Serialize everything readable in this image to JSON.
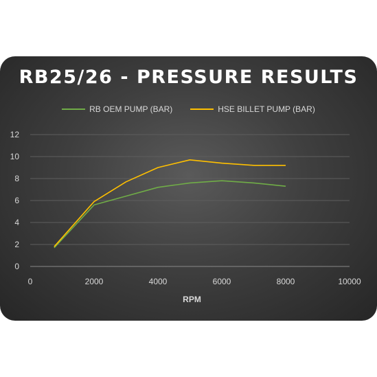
{
  "chart_data": {
    "type": "line",
    "title": "RB25/26 - PRESSURE RESULTS",
    "xlabel": "RPM",
    "ylabel": "",
    "xlim": [
      0,
      10000
    ],
    "ylim": [
      0,
      12
    ],
    "x_ticks": [
      0,
      2000,
      4000,
      6000,
      8000,
      10000
    ],
    "y_ticks": [
      0,
      2,
      4,
      6,
      8,
      10,
      12
    ],
    "grid": "horizontal",
    "legend": "top",
    "series": [
      {
        "name": "RB OEM PUMP (BAR)",
        "color": "#70ad47",
        "x": [
          750,
          2000,
          3000,
          4000,
          5000,
          6000,
          7000,
          8000
        ],
        "y": [
          1.7,
          5.6,
          6.4,
          7.2,
          7.6,
          7.8,
          7.6,
          7.3
        ]
      },
      {
        "name": "HSE BILLET PUMP (BAR)",
        "color": "#ffc000",
        "x": [
          750,
          2000,
          3000,
          4000,
          5000,
          6000,
          7000,
          8000
        ],
        "y": [
          1.8,
          5.9,
          7.7,
          9.0,
          9.7,
          9.4,
          9.2,
          9.2
        ]
      }
    ]
  }
}
